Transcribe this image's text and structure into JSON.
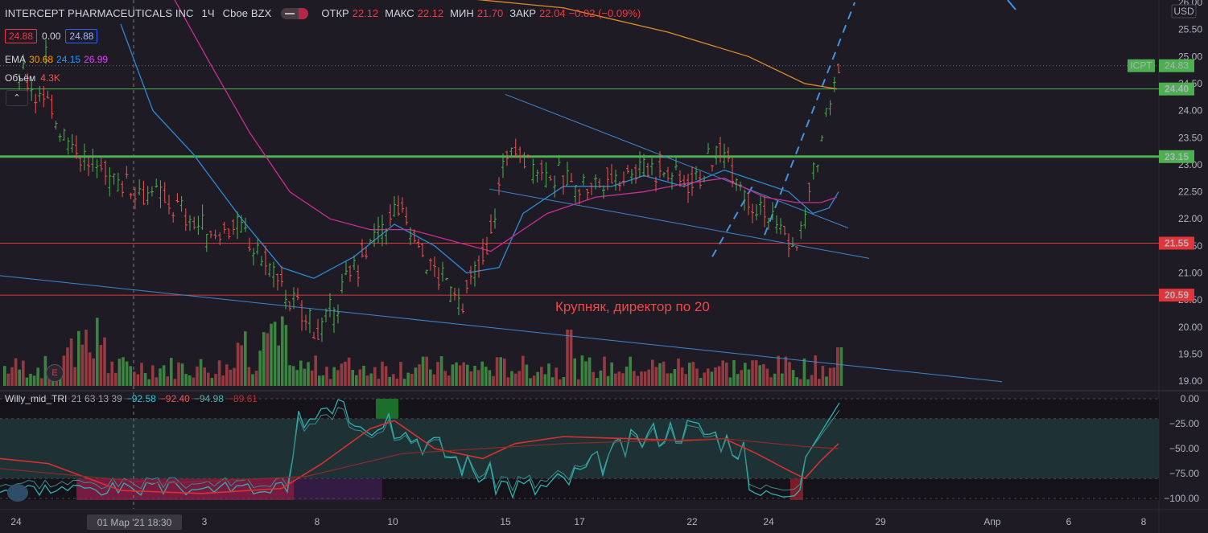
{
  "header": {
    "symbol": "INTERCEPT PHARMACEUTICALS INC",
    "interval": "1Ч",
    "exchange": "Cboe BZX",
    "open_label": "ОТКР",
    "open": "22.12",
    "high_label": "МАКС",
    "high": "22.12",
    "low_label": "МИН",
    "low": "21.70",
    "close_label": "ЗАКР",
    "close": "22.04",
    "change": "−0.02 (−0.09%)"
  },
  "quote": {
    "bid": "24.88",
    "spread": "0.00",
    "ask": "24.88"
  },
  "ema_legend": {
    "label": "EMA",
    "v1": "30.68",
    "v2": "24.15",
    "v3": "26.99",
    "c1": "#ff9800",
    "c2": "#2196f3",
    "c3": "#e040fb"
  },
  "volume_legend": {
    "label": "Объём",
    "value": "4.3K"
  },
  "collapse_glyph": "⌃",
  "event_marker": "E",
  "indicator_legend": {
    "name": "Willy_mid_TRI",
    "params": "21 63 13 39",
    "v1": "−92.58",
    "v2": "−92.40",
    "v3": "−94.98",
    "v4": "−89.61"
  },
  "annotation": "Крупняк, директор по 20",
  "currency": "USD",
  "crosshair_label": "01 Мар '21   18:30",
  "colors": {
    "up": "#4caf50",
    "down": "#ef5350",
    "ema1": "#e08a2a",
    "ema2": "#2b8ad6",
    "ema3": "#c82f95",
    "trend": "#3d86cf",
    "green_level": "#4caf50",
    "red_level": "#e0353b"
  },
  "chart_data": {
    "type": "candlestick",
    "price_axis": {
      "min": 19.0,
      "max": 26.0,
      "ticks": [
        "19.00",
        "19.50",
        "20.00",
        "20.50",
        "21.00",
        "21.50",
        "22.00",
        "22.50",
        "23.00",
        "23.50",
        "24.00",
        "24.50",
        "25.00",
        "25.50",
        "26.00"
      ]
    },
    "horizontal_levels": [
      {
        "value": 24.4,
        "label": "24.40",
        "color": "green"
      },
      {
        "value": 23.15,
        "label": "23.15",
        "color": "green"
      },
      {
        "value": 21.55,
        "label": "21.55",
        "color": "red"
      },
      {
        "value": 20.59,
        "label": "20.59",
        "color": "red"
      }
    ],
    "last_price": {
      "symbol": "ICPT",
      "value": "24.83"
    },
    "x_axis_labels": [
      "24",
      "01 Мар '21",
      "3",
      "8",
      "10",
      "15",
      "17",
      "22",
      "24",
      "29",
      "Апр",
      "6",
      "8"
    ],
    "indicator_axis": {
      "ticks": [
        "0.00",
        "−25.00",
        "−50.00",
        "−75.00",
        "−100.00"
      ]
    },
    "approx_series": {
      "close_points": [
        [
          "24 Feb",
          24.8
        ],
        [
          "25 Feb",
          23.0
        ],
        [
          "26 Feb",
          22.3
        ],
        [
          "01 Mar",
          21.7
        ],
        [
          "02 Mar",
          21.9
        ],
        [
          "03 Mar",
          21.2
        ],
        [
          "04 Mar",
          20.4
        ],
        [
          "05 Mar",
          19.9
        ],
        [
          "08 Mar",
          21.1
        ],
        [
          "09 Mar",
          22.2
        ],
        [
          "10 Mar",
          21.1
        ],
        [
          "11 Mar",
          20.5
        ],
        [
          "12 Mar",
          21.4
        ],
        [
          "15 Mar",
          23.3
        ],
        [
          "16 Mar",
          22.7
        ],
        [
          "17 Mar",
          22.6
        ],
        [
          "18 Mar",
          23.0
        ],
        [
          "19 Mar",
          22.7
        ],
        [
          "22 Mar",
          23.3
        ],
        [
          "23 Mar",
          22.4
        ],
        [
          "24 Mar",
          22.0
        ],
        [
          "25 Mar",
          21.4
        ],
        [
          "26 Mar",
          24.83
        ]
      ]
    }
  }
}
